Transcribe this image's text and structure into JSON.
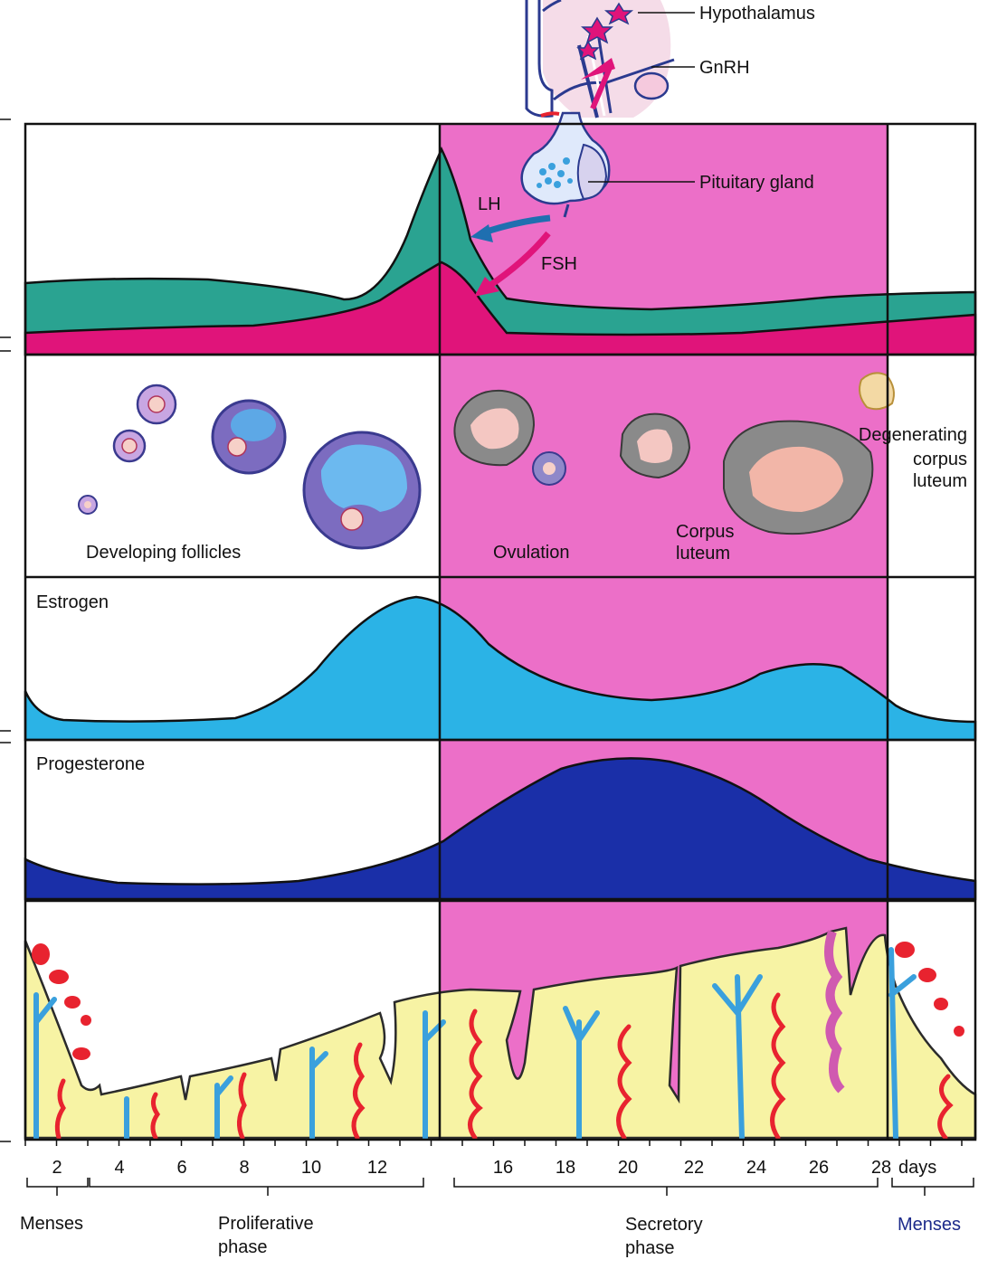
{
  "labels": {
    "hypothalamus": "Hypothalamus",
    "gnrh": "GnRH",
    "pituitary": "Pituitary gland",
    "lh": "LH",
    "fsh": "FSH",
    "developing_follicles": "Developing follicles",
    "ovulation": "Ovulation",
    "corpus_luteum_1": "Corpus",
    "corpus_luteum_2": "luteum",
    "degenerating_1": "Degenerating",
    "degenerating_2": "corpus",
    "degenerating_3": "luteum",
    "estrogen": "Estrogen",
    "progesterone": "Progesterone"
  },
  "axis": {
    "ticks": [
      "2",
      "4",
      "6",
      "8",
      "10",
      "12",
      "16",
      "18",
      "20",
      "22",
      "24",
      "26",
      "28"
    ],
    "unit": "days"
  },
  "phases": {
    "menses_start": "Menses",
    "proliferative_1": "Proliferative",
    "proliferative_2": "phase",
    "secretory_1": "Secretory",
    "secretory_2": "phase",
    "menses_end": "Menses"
  },
  "colors": {
    "secretory_background": "#ec6fc8",
    "lh": "#2aa391",
    "fsh": "#e0147a",
    "estrogen": "#2bb3e6",
    "progesterone": "#1a2fa8",
    "endometrium": "#f7f3a4",
    "artery": "#e8232f",
    "gland": "#3aa0dd"
  }
}
